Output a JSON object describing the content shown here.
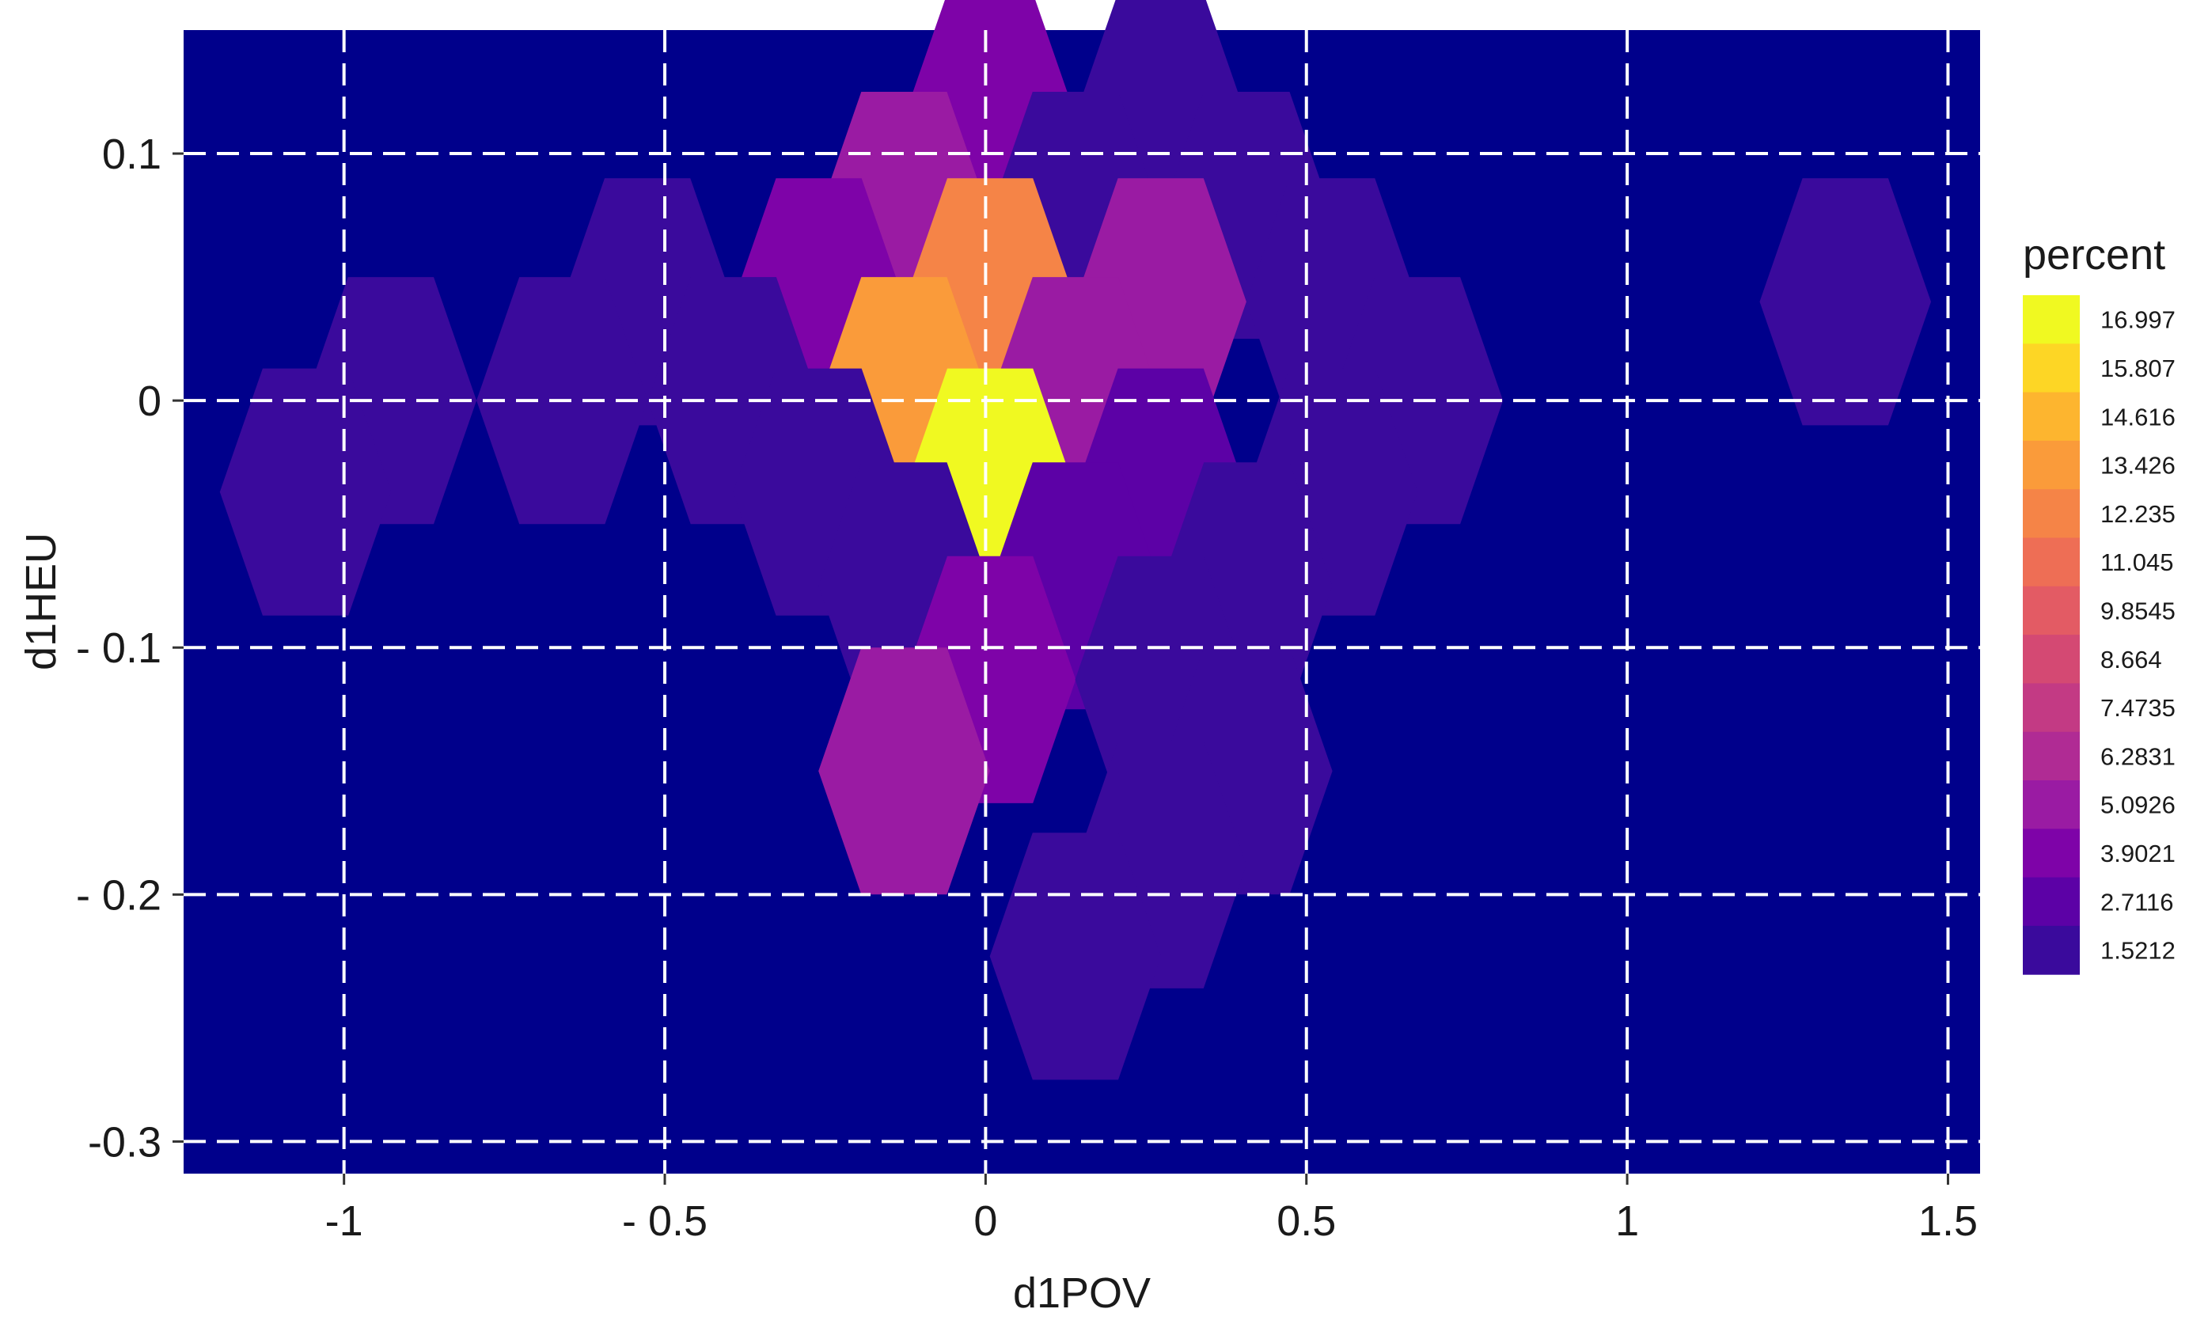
{
  "chart_data": {
    "type": "hexbin",
    "title": "",
    "xlabel": "d1POV",
    "ylabel": "d1HEU",
    "xlim": [
      -1.25,
      1.55
    ],
    "ylim": [
      -0.313,
      0.15
    ],
    "x_ticks": [
      {
        "value": -1,
        "label": "-1"
      },
      {
        "value": -0.5,
        "label": "- 0.5"
      },
      {
        "value": 0,
        "label": "0"
      },
      {
        "value": 0.5,
        "label": "0.5"
      },
      {
        "value": 1,
        "label": "1"
      },
      {
        "value": 1.5,
        "label": "1.5"
      }
    ],
    "y_ticks": [
      {
        "value": 0.1,
        "label": "0.1"
      },
      {
        "value": 0,
        "label": "0"
      },
      {
        "value": -0.1,
        "label": "- 0.1"
      },
      {
        "value": -0.2,
        "label": "- 0.2"
      },
      {
        "value": -0.3,
        "label": "-0.3"
      }
    ],
    "grid": true,
    "background_color": "#00008B",
    "grid_color": "#ffffff",
    "hex_width": 0.267,
    "hex_height": 0.1,
    "hexes": [
      {
        "x": 0.007,
        "y": 0.115,
        "percent": 3.9
      },
      {
        "x": 0.273,
        "y": 0.115,
        "percent": 1.52
      },
      {
        "x": -0.127,
        "y": 0.075,
        "percent": 5.09
      },
      {
        "x": 0.14,
        "y": 0.075,
        "percent": 1.52
      },
      {
        "x": 0.407,
        "y": 0.075,
        "percent": 1.52
      },
      {
        "x": -0.527,
        "y": 0.04,
        "percent": 1.52
      },
      {
        "x": -0.26,
        "y": 0.04,
        "percent": 3.9
      },
      {
        "x": 0.007,
        "y": 0.04,
        "percent": 12.0
      },
      {
        "x": 0.273,
        "y": 0.04,
        "percent": 5.09
      },
      {
        "x": 0.54,
        "y": 0.04,
        "percent": 1.52
      },
      {
        "x": 1.34,
        "y": 0.04,
        "percent": 1.52
      },
      {
        "x": -0.927,
        "y": 0.0,
        "percent": 1.52
      },
      {
        "x": -0.66,
        "y": 0.0,
        "percent": 1.52
      },
      {
        "x": -0.393,
        "y": 0.0,
        "percent": 1.52
      },
      {
        "x": -0.127,
        "y": 0.0,
        "percent": 13.43
      },
      {
        "x": 0.14,
        "y": 0.0,
        "percent": 5.09
      },
      {
        "x": 0.673,
        "y": 0.0,
        "percent": 1.52
      },
      {
        "x": -1.06,
        "y": -0.037,
        "percent": 1.52
      },
      {
        "x": -0.26,
        "y": -0.037,
        "percent": 1.52
      },
      {
        "x": 0.007,
        "y": -0.037,
        "percent": 17.0
      },
      {
        "x": 0.273,
        "y": -0.037,
        "percent": 2.71
      },
      {
        "x": 0.54,
        "y": -0.037,
        "percent": 1.52
      },
      {
        "x": -0.127,
        "y": -0.075,
        "percent": 1.52
      },
      {
        "x": 0.14,
        "y": -0.075,
        "percent": 2.71
      },
      {
        "x": 0.407,
        "y": -0.075,
        "percent": 1.52
      },
      {
        "x": 0.007,
        "y": -0.113,
        "percent": 3.9
      },
      {
        "x": 0.273,
        "y": -0.113,
        "percent": 1.52
      },
      {
        "x": -0.127,
        "y": -0.15,
        "percent": 5.09
      },
      {
        "x": 0.407,
        "y": -0.15,
        "percent": 1.52
      },
      {
        "x": 0.273,
        "y": -0.188,
        "percent": 1.52
      },
      {
        "x": 0.14,
        "y": -0.225,
        "percent": 1.52
      }
    ],
    "legend": {
      "title": "percent",
      "placement": "right",
      "entries": [
        {
          "label": "16.997",
          "color": "#F0F921"
        },
        {
          "label": "15.807",
          "color": "#FDD625"
        },
        {
          "label": "14.616",
          "color": "#FDB52F"
        },
        {
          "label": "13.426",
          "color": "#FA9B3A"
        },
        {
          "label": "12.235",
          "color": "#F58447"
        },
        {
          "label": "11.045",
          "color": "#EE6E55"
        },
        {
          "label": "9.8545",
          "color": "#E35B64"
        },
        {
          "label": "8.664",
          "color": "#D44973"
        },
        {
          "label": "7.4735",
          "color": "#C33A84"
        },
        {
          "label": "6.2831",
          "color": "#B02B94"
        },
        {
          "label": "5.0926",
          "color": "#9A1BA3"
        },
        {
          "label": "3.9021",
          "color": "#7E03A8"
        },
        {
          "label": "2.7116",
          "color": "#5C01A6"
        },
        {
          "label": "1.5212",
          "color": "#3A0A9C"
        }
      ]
    }
  }
}
